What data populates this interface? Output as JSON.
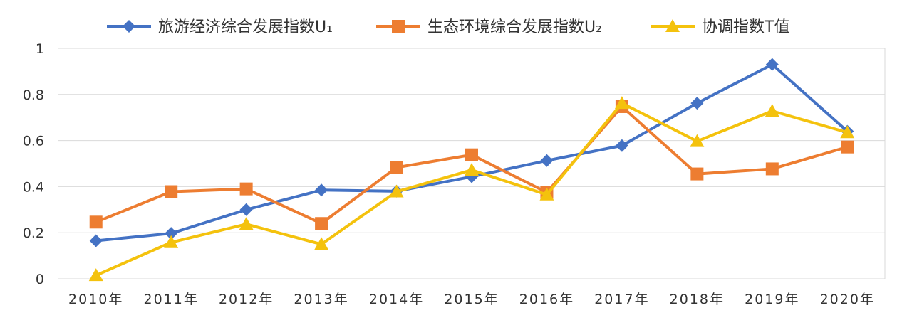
{
  "chart_data": {
    "type": "line",
    "categories": [
      "2010年",
      "2011年",
      "2012年",
      "2013年",
      "2014年",
      "2015年",
      "2016年",
      "2017年",
      "2018年",
      "2019年",
      "2020年"
    ],
    "ylim": [
      0,
      1
    ],
    "yticks": [
      "0",
      "0.2",
      "0.4",
      "0.6",
      "0.8",
      "1"
    ],
    "grid": true,
    "legend_position": "top",
    "series": [
      {
        "name": "旅游经济综合发展指数U₁",
        "color": "#4472C4",
        "marker": "diamond",
        "values": [
          0.165,
          0.197,
          0.3,
          0.385,
          0.38,
          0.443,
          0.513,
          0.578,
          0.762,
          0.93,
          0.64
        ]
      },
      {
        "name": "生态环境综合发展指数U₂",
        "color": "#ED7D31",
        "marker": "square",
        "values": [
          0.246,
          0.378,
          0.39,
          0.24,
          0.483,
          0.538,
          0.375,
          0.747,
          0.455,
          0.477,
          0.572
        ]
      },
      {
        "name": "协调指数T值",
        "color": "#F4C20D",
        "marker": "triangle",
        "values": [
          0.015,
          0.158,
          0.237,
          0.15,
          0.378,
          0.472,
          0.365,
          0.762,
          0.597,
          0.728,
          0.635
        ]
      }
    ]
  }
}
